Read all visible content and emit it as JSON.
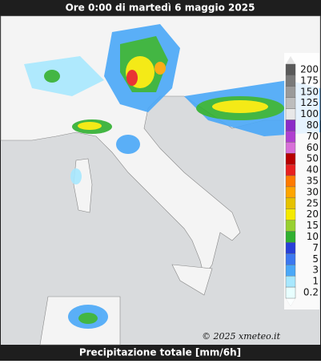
{
  "header": {
    "title": "Ore 0:00 di martedì 6 maggio 2025"
  },
  "footer": {
    "title": "Precipitazione totale [mm/6h]"
  },
  "credit": "© 2025 xmeteo.it",
  "legend": [
    {
      "label": "200",
      "color": "#5a5a5a"
    },
    {
      "label": "175",
      "color": "#7a7a7a"
    },
    {
      "label": "150",
      "color": "#9a9a9a"
    },
    {
      "label": "125",
      "color": "#bdbdbd"
    },
    {
      "label": "100",
      "color": "#e8e8e8"
    },
    {
      "label": "80",
      "color": "#8b2bc8"
    },
    {
      "label": "70",
      "color": "#b040d0"
    },
    {
      "label": "60",
      "color": "#d870d8"
    },
    {
      "label": "50",
      "color": "#b80000"
    },
    {
      "label": "40",
      "color": "#e82020"
    },
    {
      "label": "35",
      "color": "#ff7a00"
    },
    {
      "label": "30",
      "color": "#ffa500"
    },
    {
      "label": "25",
      "color": "#e6c200"
    },
    {
      "label": "20",
      "color": "#f5ea00"
    },
    {
      "label": "15",
      "color": "#98d030"
    },
    {
      "label": "10",
      "color": "#30b030"
    },
    {
      "label": "7",
      "color": "#2840d8"
    },
    {
      "label": "5",
      "color": "#3c78f0"
    },
    {
      "label": "3",
      "color": "#4aa8f8"
    },
    {
      "label": "1",
      "color": "#a8e8ff"
    },
    {
      "label": "0.2",
      "color": "#e8ffff"
    }
  ]
}
